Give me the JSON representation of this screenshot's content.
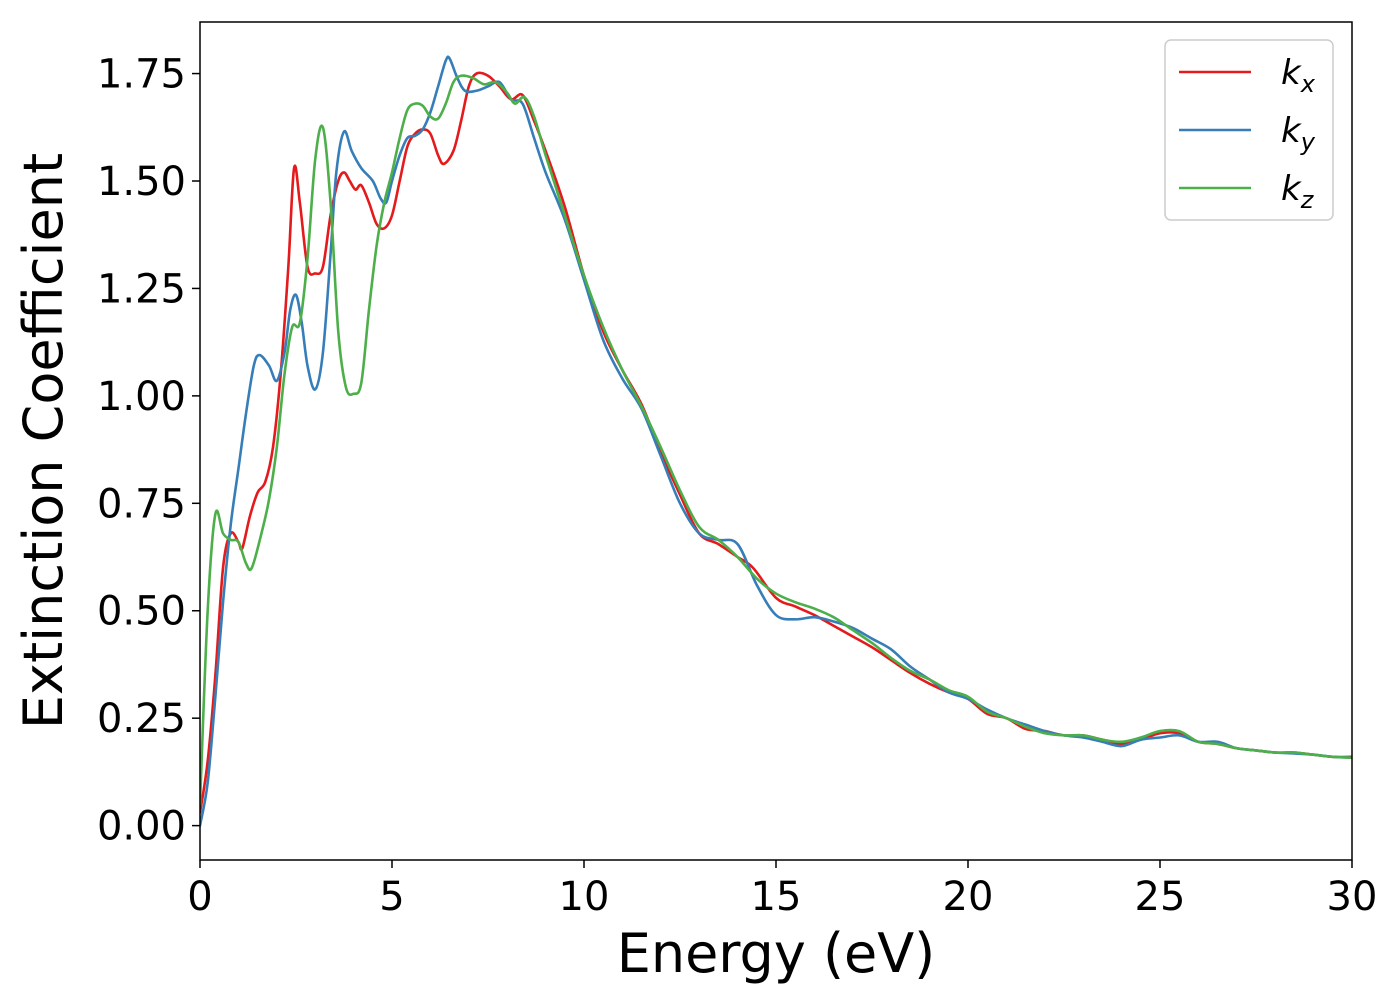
{
  "chart_data": {
    "type": "line",
    "xlabel": "Energy (eV)",
    "ylabel": "Extinction Coefficient",
    "xlim": [
      0,
      30
    ],
    "ylim": [
      -0.08,
      1.87
    ],
    "xticks": [
      0,
      5,
      10,
      15,
      20,
      25,
      30
    ],
    "yticks": [
      0.0,
      0.25,
      0.5,
      0.75,
      1.0,
      1.25,
      1.5,
      1.75
    ],
    "xtick_labels": [
      "0",
      "5",
      "10",
      "15",
      "20",
      "25",
      "30"
    ],
    "ytick_labels": [
      "0.00",
      "0.25",
      "0.50",
      "0.75",
      "1.00",
      "1.25",
      "1.50",
      "1.75"
    ],
    "grid": false,
    "legend_position": "top-right",
    "series": [
      {
        "name": "k",
        "subscript": "x",
        "color": "#e41a1c",
        "points": [
          [
            0,
            0.03
          ],
          [
            0.2,
            0.15
          ],
          [
            0.4,
            0.35
          ],
          [
            0.6,
            0.6
          ],
          [
            0.8,
            0.68
          ],
          [
            1.0,
            0.66
          ],
          [
            1.1,
            0.645
          ],
          [
            1.3,
            0.72
          ],
          [
            1.5,
            0.775
          ],
          [
            1.7,
            0.8
          ],
          [
            1.9,
            0.88
          ],
          [
            2.1,
            1.05
          ],
          [
            2.3,
            1.3
          ],
          [
            2.45,
            1.53
          ],
          [
            2.6,
            1.45
          ],
          [
            2.8,
            1.3
          ],
          [
            3.0,
            1.285
          ],
          [
            3.2,
            1.3
          ],
          [
            3.4,
            1.42
          ],
          [
            3.6,
            1.5
          ],
          [
            3.75,
            1.52
          ],
          [
            3.9,
            1.5
          ],
          [
            4.05,
            1.48
          ],
          [
            4.2,
            1.49
          ],
          [
            4.4,
            1.45
          ],
          [
            4.6,
            1.4
          ],
          [
            4.8,
            1.39
          ],
          [
            5.0,
            1.42
          ],
          [
            5.2,
            1.5
          ],
          [
            5.4,
            1.58
          ],
          [
            5.6,
            1.61
          ],
          [
            5.8,
            1.62
          ],
          [
            6.0,
            1.61
          ],
          [
            6.2,
            1.56
          ],
          [
            6.35,
            1.54
          ],
          [
            6.6,
            1.57
          ],
          [
            6.8,
            1.64
          ],
          [
            7.0,
            1.72
          ],
          [
            7.2,
            1.75
          ],
          [
            7.5,
            1.745
          ],
          [
            7.8,
            1.72
          ],
          [
            8.1,
            1.69
          ],
          [
            8.4,
            1.7
          ],
          [
            8.7,
            1.64
          ],
          [
            9.0,
            1.57
          ],
          [
            9.5,
            1.44
          ],
          [
            10.0,
            1.28
          ],
          [
            10.5,
            1.15
          ],
          [
            11.0,
            1.06
          ],
          [
            11.5,
            0.98
          ],
          [
            12.0,
            0.87
          ],
          [
            12.5,
            0.77
          ],
          [
            13.0,
            0.68
          ],
          [
            13.5,
            0.655
          ],
          [
            14.0,
            0.625
          ],
          [
            14.4,
            0.6
          ],
          [
            15.0,
            0.53
          ],
          [
            15.5,
            0.51
          ],
          [
            16.0,
            0.49
          ],
          [
            16.5,
            0.465
          ],
          [
            17.0,
            0.44
          ],
          [
            17.5,
            0.415
          ],
          [
            18.0,
            0.385
          ],
          [
            18.5,
            0.355
          ],
          [
            19.0,
            0.33
          ],
          [
            19.5,
            0.31
          ],
          [
            20.0,
            0.295
          ],
          [
            20.5,
            0.26
          ],
          [
            21.0,
            0.25
          ],
          [
            21.5,
            0.225
          ],
          [
            22.0,
            0.22
          ],
          [
            22.5,
            0.21
          ],
          [
            23.0,
            0.21
          ],
          [
            23.5,
            0.2
          ],
          [
            24.0,
            0.19
          ],
          [
            24.5,
            0.2
          ],
          [
            25.0,
            0.215
          ],
          [
            25.5,
            0.215
          ],
          [
            26.0,
            0.195
          ],
          [
            26.5,
            0.19
          ],
          [
            27.0,
            0.18
          ],
          [
            27.5,
            0.175
          ],
          [
            28.0,
            0.17
          ],
          [
            28.5,
            0.17
          ],
          [
            29.0,
            0.165
          ],
          [
            29.5,
            0.16
          ],
          [
            30.0,
            0.16
          ]
        ]
      },
      {
        "name": "k",
        "subscript": "y",
        "color": "#377eb8",
        "points": [
          [
            0,
            0.0
          ],
          [
            0.2,
            0.1
          ],
          [
            0.4,
            0.3
          ],
          [
            0.6,
            0.52
          ],
          [
            0.8,
            0.7
          ],
          [
            1.0,
            0.83
          ],
          [
            1.2,
            0.96
          ],
          [
            1.4,
            1.07
          ],
          [
            1.55,
            1.095
          ],
          [
            1.8,
            1.07
          ],
          [
            2.0,
            1.035
          ],
          [
            2.2,
            1.1
          ],
          [
            2.35,
            1.2
          ],
          [
            2.5,
            1.235
          ],
          [
            2.65,
            1.17
          ],
          [
            2.8,
            1.07
          ],
          [
            3.0,
            1.015
          ],
          [
            3.2,
            1.1
          ],
          [
            3.4,
            1.33
          ],
          [
            3.55,
            1.52
          ],
          [
            3.75,
            1.615
          ],
          [
            3.95,
            1.57
          ],
          [
            4.2,
            1.53
          ],
          [
            4.5,
            1.5
          ],
          [
            4.7,
            1.46
          ],
          [
            4.85,
            1.45
          ],
          [
            5.0,
            1.5
          ],
          [
            5.2,
            1.56
          ],
          [
            5.4,
            1.6
          ],
          [
            5.6,
            1.605
          ],
          [
            5.8,
            1.62
          ],
          [
            6.0,
            1.66
          ],
          [
            6.2,
            1.72
          ],
          [
            6.4,
            1.78
          ],
          [
            6.5,
            1.785
          ],
          [
            6.7,
            1.74
          ],
          [
            6.9,
            1.71
          ],
          [
            7.2,
            1.71
          ],
          [
            7.5,
            1.72
          ],
          [
            7.8,
            1.73
          ],
          [
            8.1,
            1.69
          ],
          [
            8.4,
            1.68
          ],
          [
            8.7,
            1.6
          ],
          [
            9.0,
            1.52
          ],
          [
            9.5,
            1.41
          ],
          [
            10.0,
            1.27
          ],
          [
            10.5,
            1.13
          ],
          [
            11.0,
            1.04
          ],
          [
            11.5,
            0.97
          ],
          [
            12.0,
            0.86
          ],
          [
            12.5,
            0.75
          ],
          [
            13.0,
            0.68
          ],
          [
            13.5,
            0.665
          ],
          [
            14.0,
            0.655
          ],
          [
            14.5,
            0.56
          ],
          [
            15.0,
            0.49
          ],
          [
            15.5,
            0.48
          ],
          [
            16.0,
            0.485
          ],
          [
            16.5,
            0.475
          ],
          [
            17.0,
            0.46
          ],
          [
            17.5,
            0.435
          ],
          [
            18.0,
            0.41
          ],
          [
            18.5,
            0.37
          ],
          [
            19.0,
            0.34
          ],
          [
            19.5,
            0.31
          ],
          [
            20.0,
            0.295
          ],
          [
            20.5,
            0.27
          ],
          [
            21.0,
            0.25
          ],
          [
            21.5,
            0.235
          ],
          [
            22.0,
            0.22
          ],
          [
            22.5,
            0.21
          ],
          [
            23.0,
            0.205
          ],
          [
            23.5,
            0.195
          ],
          [
            24.0,
            0.185
          ],
          [
            24.5,
            0.2
          ],
          [
            25.0,
            0.205
          ],
          [
            25.5,
            0.21
          ],
          [
            26.0,
            0.195
          ],
          [
            26.5,
            0.195
          ],
          [
            27.0,
            0.18
          ],
          [
            27.5,
            0.175
          ],
          [
            28.0,
            0.17
          ],
          [
            28.5,
            0.168
          ],
          [
            29.0,
            0.165
          ],
          [
            29.5,
            0.16
          ],
          [
            30.0,
            0.158
          ]
        ]
      },
      {
        "name": "k",
        "subscript": "z",
        "color": "#4daf4a",
        "points": [
          [
            0,
            0.05
          ],
          [
            0.2,
            0.5
          ],
          [
            0.4,
            0.725
          ],
          [
            0.6,
            0.68
          ],
          [
            0.8,
            0.665
          ],
          [
            1.0,
            0.66
          ],
          [
            1.2,
            0.61
          ],
          [
            1.35,
            0.6
          ],
          [
            1.6,
            0.68
          ],
          [
            1.8,
            0.76
          ],
          [
            2.0,
            0.88
          ],
          [
            2.2,
            1.05
          ],
          [
            2.4,
            1.16
          ],
          [
            2.6,
            1.17
          ],
          [
            2.8,
            1.32
          ],
          [
            3.0,
            1.55
          ],
          [
            3.2,
            1.625
          ],
          [
            3.4,
            1.45
          ],
          [
            3.6,
            1.15
          ],
          [
            3.8,
            1.02
          ],
          [
            4.0,
            1.005
          ],
          [
            4.2,
            1.03
          ],
          [
            4.4,
            1.2
          ],
          [
            4.6,
            1.35
          ],
          [
            4.8,
            1.45
          ],
          [
            5.0,
            1.52
          ],
          [
            5.2,
            1.6
          ],
          [
            5.4,
            1.665
          ],
          [
            5.6,
            1.68
          ],
          [
            5.8,
            1.675
          ],
          [
            6.0,
            1.65
          ],
          [
            6.2,
            1.645
          ],
          [
            6.4,
            1.68
          ],
          [
            6.6,
            1.73
          ],
          [
            6.8,
            1.745
          ],
          [
            7.1,
            1.74
          ],
          [
            7.4,
            1.725
          ],
          [
            7.7,
            1.73
          ],
          [
            8.0,
            1.705
          ],
          [
            8.2,
            1.68
          ],
          [
            8.45,
            1.695
          ],
          [
            8.7,
            1.65
          ],
          [
            9.0,
            1.56
          ],
          [
            9.5,
            1.42
          ],
          [
            10.0,
            1.28
          ],
          [
            10.5,
            1.16
          ],
          [
            11.0,
            1.06
          ],
          [
            11.5,
            0.975
          ],
          [
            12.0,
            0.88
          ],
          [
            12.5,
            0.78
          ],
          [
            13.0,
            0.695
          ],
          [
            13.5,
            0.665
          ],
          [
            14.0,
            0.625
          ],
          [
            14.5,
            0.575
          ],
          [
            15.0,
            0.54
          ],
          [
            15.5,
            0.52
          ],
          [
            16.0,
            0.505
          ],
          [
            16.5,
            0.485
          ],
          [
            17.0,
            0.455
          ],
          [
            17.5,
            0.425
          ],
          [
            18.0,
            0.39
          ],
          [
            18.5,
            0.36
          ],
          [
            19.0,
            0.34
          ],
          [
            19.5,
            0.315
          ],
          [
            20.0,
            0.3
          ],
          [
            20.5,
            0.265
          ],
          [
            21.0,
            0.25
          ],
          [
            21.5,
            0.23
          ],
          [
            22.0,
            0.215
          ],
          [
            22.5,
            0.21
          ],
          [
            23.0,
            0.21
          ],
          [
            23.5,
            0.2
          ],
          [
            24.0,
            0.195
          ],
          [
            24.5,
            0.205
          ],
          [
            25.0,
            0.22
          ],
          [
            25.5,
            0.22
          ],
          [
            26.0,
            0.195
          ],
          [
            26.5,
            0.19
          ],
          [
            27.0,
            0.18
          ],
          [
            27.5,
            0.175
          ],
          [
            28.0,
            0.17
          ],
          [
            28.5,
            0.17
          ],
          [
            29.0,
            0.165
          ],
          [
            29.5,
            0.16
          ],
          [
            30.0,
            0.158
          ]
        ]
      }
    ]
  }
}
